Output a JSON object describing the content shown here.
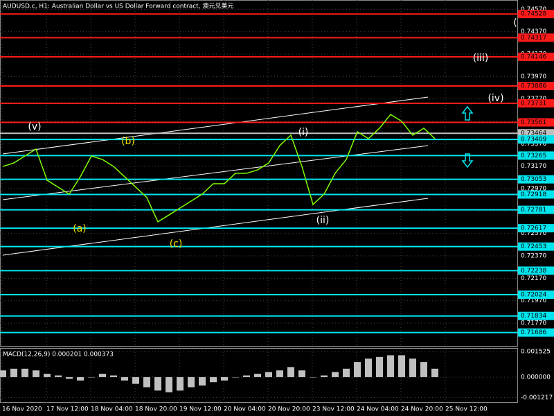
{
  "chart_data": [
    {
      "type": "line",
      "title": "AUDUSD.c, H1:  Australian Dollar vs US Dollar Forward contract, 澳元兑美元",
      "color": "#7fff00",
      "values": [
        0.73168,
        0.73199,
        0.73261,
        0.73323,
        0.73045,
        0.72983,
        0.72921,
        0.73076,
        0.73261,
        0.7323,
        0.73168,
        0.73076,
        0.72983,
        0.7289,
        0.72674,
        0.72735,
        0.72797,
        0.72859,
        0.72921,
        0.73014,
        0.73014,
        0.73107,
        0.73107,
        0.73137,
        0.73199,
        0.73354,
        0.73447,
        0.73168,
        0.72828,
        0.72921,
        0.73107,
        0.7323,
        0.73478,
        0.73416,
        0.73509,
        0.73632,
        0.73571,
        0.73447,
        0.73509,
        0.73416
      ],
      "ylim": [
        0.7156,
        0.74653
      ],
      "yticks": [
        {
          "value": 0.7457,
          "label": "0.74570"
        },
        {
          "value": 0.7437,
          "label": "0.74370"
        },
        {
          "value": 0.7417,
          "label": "0.74170"
        },
        {
          "value": 0.7397,
          "label": "0.73970"
        },
        {
          "value": 0.7377,
          "label": "0.73770"
        },
        {
          "value": 0.7357,
          "label": "0.73570"
        },
        {
          "value": 0.7337,
          "label": "0.73370"
        },
        {
          "value": 0.7317,
          "label": "0.73170"
        },
        {
          "value": 0.7297,
          "label": "0.72970"
        },
        {
          "value": 0.7277,
          "label": "0.72770"
        },
        {
          "value": 0.7257,
          "label": "0.72570"
        },
        {
          "value": 0.7237,
          "label": "0.72370"
        },
        {
          "value": 0.7217,
          "label": "0.72170"
        },
        {
          "value": 0.7197,
          "label": "0.71970"
        },
        {
          "value": 0.7177,
          "label": "0.71770"
        }
      ],
      "levels": [
        {
          "value": 0.74528,
          "label": "0.74528",
          "color": "#ff1a1a"
        },
        {
          "value": 0.74317,
          "label": "0.74317",
          "color": "#ff1a1a"
        },
        {
          "value": 0.74146,
          "label": "0.74146",
          "color": "#ff1a1a"
        },
        {
          "value": 0.73886,
          "label": "0.73886",
          "color": "#ff1a1a"
        },
        {
          "value": 0.73731,
          "label": "0.73731",
          "color": "#ff1a1a"
        },
        {
          "value": 0.73561,
          "label": "0.73561",
          "color": "#ff1a1a"
        },
        {
          "value": 0.73464,
          "label": "0.73464",
          "color": "#c0c0c0"
        },
        {
          "value": 0.73409,
          "label": "0.73409",
          "color": "#00e5ee"
        },
        {
          "value": 0.73265,
          "label": "0.73265",
          "color": "#00e5ee"
        },
        {
          "value": 0.73053,
          "label": "0.73053",
          "color": "#00e5ee"
        },
        {
          "value": 0.72918,
          "label": "0.72918",
          "color": "#00e5ee"
        },
        {
          "value": 0.72781,
          "label": "0.72781",
          "color": "#00e5ee"
        },
        {
          "value": 0.72617,
          "label": "0.72617",
          "color": "#00e5ee"
        },
        {
          "value": 0.72453,
          "label": "0.72453",
          "color": "#00e5ee"
        },
        {
          "value": 0.72238,
          "label": "0.72238",
          "color": "#00e5ee"
        },
        {
          "value": 0.72024,
          "label": "0.72024",
          "color": "#00e5ee"
        },
        {
          "value": 0.71834,
          "label": "0.71834",
          "color": "#00e5ee"
        },
        {
          "value": 0.71686,
          "label": "0.71686",
          "color": "#00e5ee"
        }
      ],
      "annotations": [
        {
          "text": "(v)",
          "color": "#ffffff"
        },
        {
          "text": "(b)",
          "color": "#e5e500"
        },
        {
          "text": "(a)",
          "color": "#e5e500"
        },
        {
          "text": "(c)",
          "color": "#e5e500"
        },
        {
          "text": "(i)",
          "color": "#ffffff"
        },
        {
          "text": "(ii)",
          "color": "#ffffff"
        },
        {
          "text": "(iii)",
          "color": "#ffffff"
        },
        {
          "text": "(iv)",
          "color": "#ffffff"
        },
        {
          "text": "(",
          "color": "#ffffff"
        }
      ]
    },
    {
      "type": "bar",
      "title": "MACD(12,26,9) 0.000201 0.000373",
      "color": "#c0c0c0",
      "values": [
        0.0004,
        0.0005,
        0.0005,
        0.0004,
        0.0002,
        0.0001,
        -0.0001,
        -0.0002,
        0.0,
        0.0002,
        0.0001,
        -0.0002,
        -0.0004,
        -0.0006,
        -0.0008,
        -0.0009,
        -0.0008,
        -0.0006,
        -0.0005,
        -0.0003,
        -0.0002,
        0.0,
        0.0001,
        0.0002,
        0.0003,
        0.0004,
        0.0006,
        0.0004,
        0.0,
        0.0001,
        0.0003,
        0.0005,
        0.0009,
        0.0011,
        0.0012,
        0.0013,
        0.0013,
        0.0011,
        0.0009,
        0.0005
      ],
      "ylim": [
        -0.00157,
        0.00173
      ],
      "yticks": [
        0.001525,
        {
          "value": 0,
          "label": "0.000000"
        },
        -0.001217
      ]
    }
  ],
  "time_labels": [
    "16 Nov 2020",
    "17 Nov 12:00",
    "18 Nov 04:00",
    "18 Nov 20:00",
    "19 Nov 12:00",
    "20 Nov 04:00",
    "20 Nov 20:00",
    "23 Nov 12:00",
    "24 Nov 04:00",
    "24 Nov 20:00",
    "25 Nov 12:00"
  ]
}
